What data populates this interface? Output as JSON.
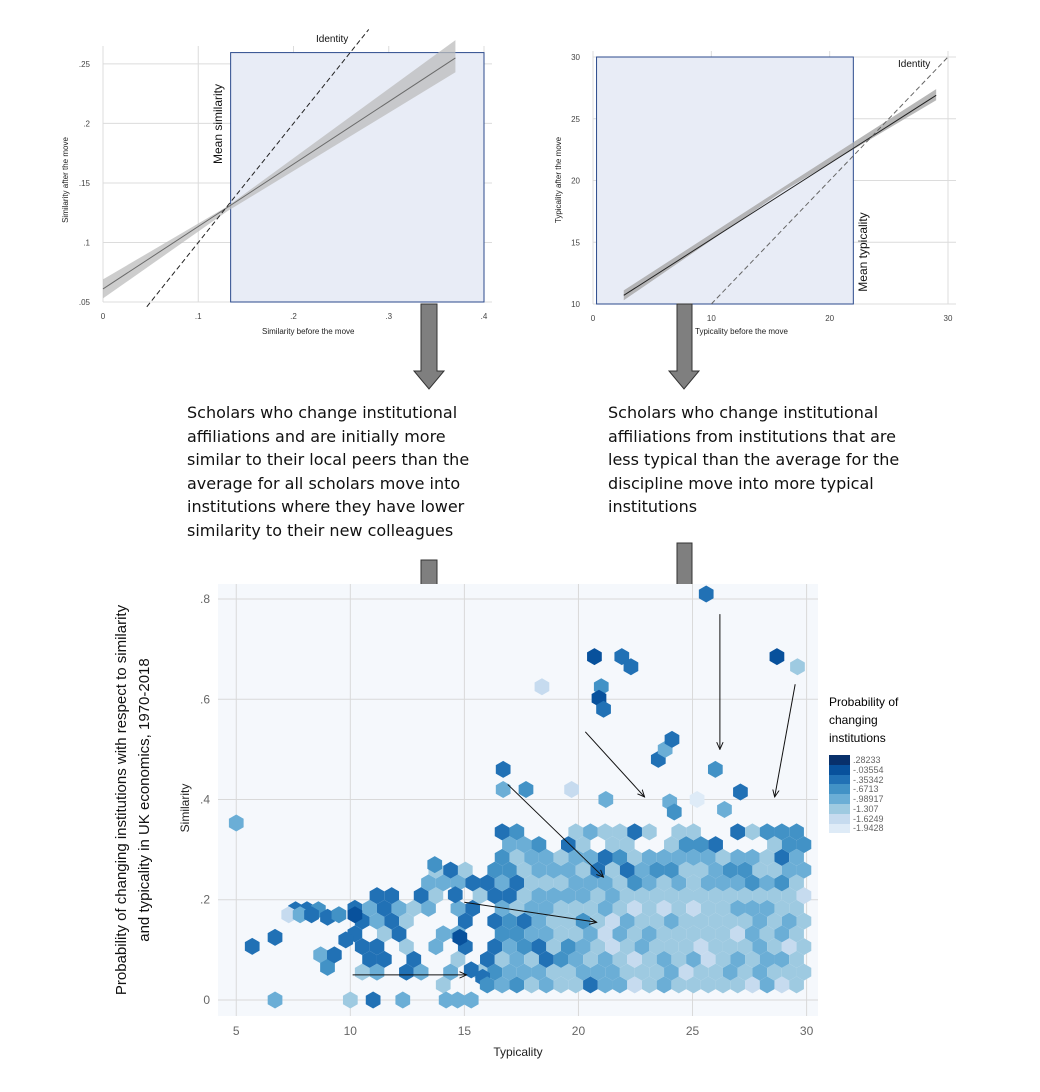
{
  "panels": [
    {
      "id": "similarity",
      "type": "line",
      "xlabel": "Similarity before the move",
      "ylabel": "Similarity after the move",
      "xlim": [
        0,
        0.4
      ],
      "ylim": [
        0.05,
        0.26
      ],
      "xticks": [
        0,
        0.1,
        0.2,
        0.3,
        0.4
      ],
      "xtick_labels": [
        "0",
        ".1",
        ".2",
        ".3",
        ".4"
      ],
      "yticks": [
        0.05,
        0.1,
        0.15,
        0.2,
        0.25
      ],
      "ytick_labels": [
        ".05",
        ".1",
        ".15",
        ".2",
        ".25"
      ],
      "fit_line": {
        "x": [
          0,
          0.37
        ],
        "y": [
          0.061,
          0.255
        ]
      },
      "ci_band": {
        "x": [
          0,
          0.13,
          0.37
        ],
        "lower": [
          0.053,
          0.126,
          0.243
        ],
        "upper": [
          0.069,
          0.13,
          0.27
        ]
      },
      "identity_line": {
        "x": [
          0.046,
          0.279
        ],
        "label": "Identity"
      },
      "highlight": {
        "label": "Mean similarity",
        "x_range": [
          0.134,
          0.4
        ],
        "y_range": [
          0.05,
          0.2595
        ]
      }
    },
    {
      "id": "typicality",
      "type": "line",
      "xlabel": "Typicality before the move",
      "ylabel": "Typicality after the move",
      "xlim": [
        0,
        30
      ],
      "ylim": [
        10,
        30
      ],
      "xticks": [
        0,
        10,
        20,
        30
      ],
      "xtick_labels": [
        "0",
        "10",
        "20",
        "30"
      ],
      "yticks": [
        10,
        15,
        20,
        25,
        30
      ],
      "ytick_labels": [
        "10",
        "15",
        "20",
        "25",
        "30"
      ],
      "fit_line": {
        "x": [
          2.6,
          29
        ],
        "y": [
          10.7,
          26.9
        ]
      },
      "ci_band": {
        "x": [
          2.6,
          16,
          29
        ],
        "lower": [
          10.3,
          19.1,
          26.5
        ],
        "upper": [
          11.1,
          19.4,
          27.4
        ]
      },
      "identity_line": {
        "x": [
          10,
          30
        ],
        "label": "Identity"
      },
      "highlight": {
        "label": "Mean typicality",
        "x_range": [
          0.3,
          22
        ],
        "y_range": [
          10,
          30
        ]
      }
    }
  ],
  "captions": {
    "left": [
      "Scholars who change institutional",
      "affiliations and are initially more",
      "similar to their local peers than the",
      "average for all scholars move into",
      "institutions where they have lower",
      "similarity to their new colleagues"
    ],
    "right": [
      "Scholars who change institutional",
      "affiliations from institutions that are",
      "less typical than the average for the",
      "discipline move into more typical",
      "institutions"
    ]
  },
  "chart_data": {
    "type": "heatmap",
    "subtype": "hexbin",
    "title": "Probability of changing institutions with respect to similarity and typicality in UK economics, 1970-2018",
    "xlabel": "Typicality",
    "ylabel": "Similarity",
    "xlim": [
      4.2,
      30.5
    ],
    "ylim": [
      -0.032,
      0.83
    ],
    "xticks": [
      5,
      10,
      15,
      20,
      25,
      30
    ],
    "xtick_labels": [
      "5",
      "10",
      "15",
      "20",
      "25",
      "30"
    ],
    "yticks": [
      0,
      0.2,
      0.4,
      0.6,
      0.8
    ],
    "ytick_labels": [
      "0",
      ".2",
      ".4",
      ".6",
      ".8"
    ],
    "legend": {
      "title": "Probability of changing institutions",
      "levels": [
        ".28233",
        "-.03554",
        "-.35342",
        "-.6713",
        "-.98917",
        "-1.307",
        "-1.6249",
        "-1.9428"
      ],
      "colors": [
        "#08306b",
        "#08519c",
        "#2171b5",
        "#4292c6",
        "#6baed6",
        "#9ecae1",
        "#c6dbef",
        "#deebf7"
      ]
    },
    "hex_cells": [
      {
        "x": 5.0,
        "y": 0.353,
        "v": 4
      },
      {
        "x": 5.7,
        "y": 0.107,
        "v": 2
      },
      {
        "x": 6.7,
        "y": 0.125,
        "v": 2
      },
      {
        "x": 6.7,
        "y": 0.0,
        "v": 4
      },
      {
        "x": 7.6,
        "y": 0.18,
        "v": 2
      },
      {
        "x": 8.1,
        "y": 0.18,
        "v": 2
      },
      {
        "x": 8.6,
        "y": 0.18,
        "v": 3
      },
      {
        "x": 7.3,
        "y": 0.17,
        "v": 6
      },
      {
        "x": 7.8,
        "y": 0.17,
        "v": 4
      },
      {
        "x": 8.3,
        "y": 0.17,
        "v": 2
      },
      {
        "x": 9.0,
        "y": 0.165,
        "v": 2
      },
      {
        "x": 9.5,
        "y": 0.17,
        "v": 3
      },
      {
        "x": 10.2,
        "y": 0.17,
        "v": 1
      },
      {
        "x": 8.7,
        "y": 0.09,
        "v": 4
      },
      {
        "x": 9.0,
        "y": 0.065,
        "v": 3
      },
      {
        "x": 9.3,
        "y": 0.09,
        "v": 2
      },
      {
        "x": 9.8,
        "y": 0.12,
        "v": 2
      },
      {
        "x": 10.0,
        "y": 0.0,
        "v": 5
      },
      {
        "x": 11.0,
        "y": 0.0,
        "v": 2
      },
      {
        "x": 12.3,
        "y": 0.0,
        "v": 4
      },
      {
        "x": 14.2,
        "y": 0.0,
        "v": 4
      },
      {
        "x": 14.7,
        "y": 0.0,
        "v": 4
      },
      {
        "x": 15.3,
        "y": 0.0,
        "v": 4
      },
      {
        "x": 13.7,
        "y": 0.27,
        "v": 3
      },
      {
        "x": 14.6,
        "y": 0.21,
        "v": 2
      },
      {
        "x": 14.8,
        "y": 0.125,
        "v": 1
      },
      {
        "x": 15.3,
        "y": 0.06,
        "v": 2
      },
      {
        "x": 15.8,
        "y": 0.045,
        "v": 2
      },
      {
        "x": 16.0,
        "y": 0.03,
        "v": 3
      },
      {
        "x": 16.7,
        "y": 0.46,
        "v": 2
      },
      {
        "x": 16.7,
        "y": 0.42,
        "v": 4
      },
      {
        "x": 17.7,
        "y": 0.42,
        "v": 3
      },
      {
        "x": 18.4,
        "y": 0.625,
        "v": 6
      },
      {
        "x": 19.7,
        "y": 0.42,
        "v": 6
      },
      {
        "x": 20.7,
        "y": 0.685,
        "v": 1
      },
      {
        "x": 21.0,
        "y": 0.625,
        "v": 3
      },
      {
        "x": 20.9,
        "y": 0.602,
        "v": 1
      },
      {
        "x": 21.1,
        "y": 0.58,
        "v": 2
      },
      {
        "x": 21.2,
        "y": 0.4,
        "v": 4
      },
      {
        "x": 21.9,
        "y": 0.685,
        "v": 2
      },
      {
        "x": 22.3,
        "y": 0.665,
        "v": 2
      },
      {
        "x": 23.5,
        "y": 0.48,
        "v": 2
      },
      {
        "x": 23.8,
        "y": 0.5,
        "v": 4
      },
      {
        "x": 24.1,
        "y": 0.52,
        "v": 2
      },
      {
        "x": 24.0,
        "y": 0.395,
        "v": 4
      },
      {
        "x": 24.2,
        "y": 0.375,
        "v": 3
      },
      {
        "x": 25.6,
        "y": 0.81,
        "v": 2
      },
      {
        "x": 25.2,
        "y": 0.4,
        "v": 7
      },
      {
        "x": 26.0,
        "y": 0.46,
        "v": 3
      },
      {
        "x": 26.4,
        "y": 0.38,
        "v": 4
      },
      {
        "x": 27.1,
        "y": 0.415,
        "v": 2
      },
      {
        "x": 28.7,
        "y": 0.685,
        "v": 1
      },
      {
        "x": 29.6,
        "y": 0.665,
        "v": 5
      }
    ],
    "dense_region": {
      "x_range": [
        10.2,
        29.9
      ],
      "y_range": [
        0.03,
        0.36
      ],
      "dominant_level": "-1.307"
    },
    "arrows": [
      {
        "from": [
          10.1,
          0.05
        ],
        "to": [
          15.1,
          0.05
        ]
      },
      {
        "from": [
          15.0,
          0.195
        ],
        "to": [
          20.8,
          0.155
        ]
      },
      {
        "from": [
          16.9,
          0.43
        ],
        "to": [
          21.1,
          0.245
        ]
      },
      {
        "from": [
          20.3,
          0.535
        ],
        "to": [
          22.9,
          0.405
        ]
      },
      {
        "from": [
          26.2,
          0.77
        ],
        "to": [
          26.2,
          0.5
        ]
      },
      {
        "from": [
          29.5,
          0.63
        ],
        "to": [
          28.6,
          0.405
        ]
      }
    ]
  }
}
